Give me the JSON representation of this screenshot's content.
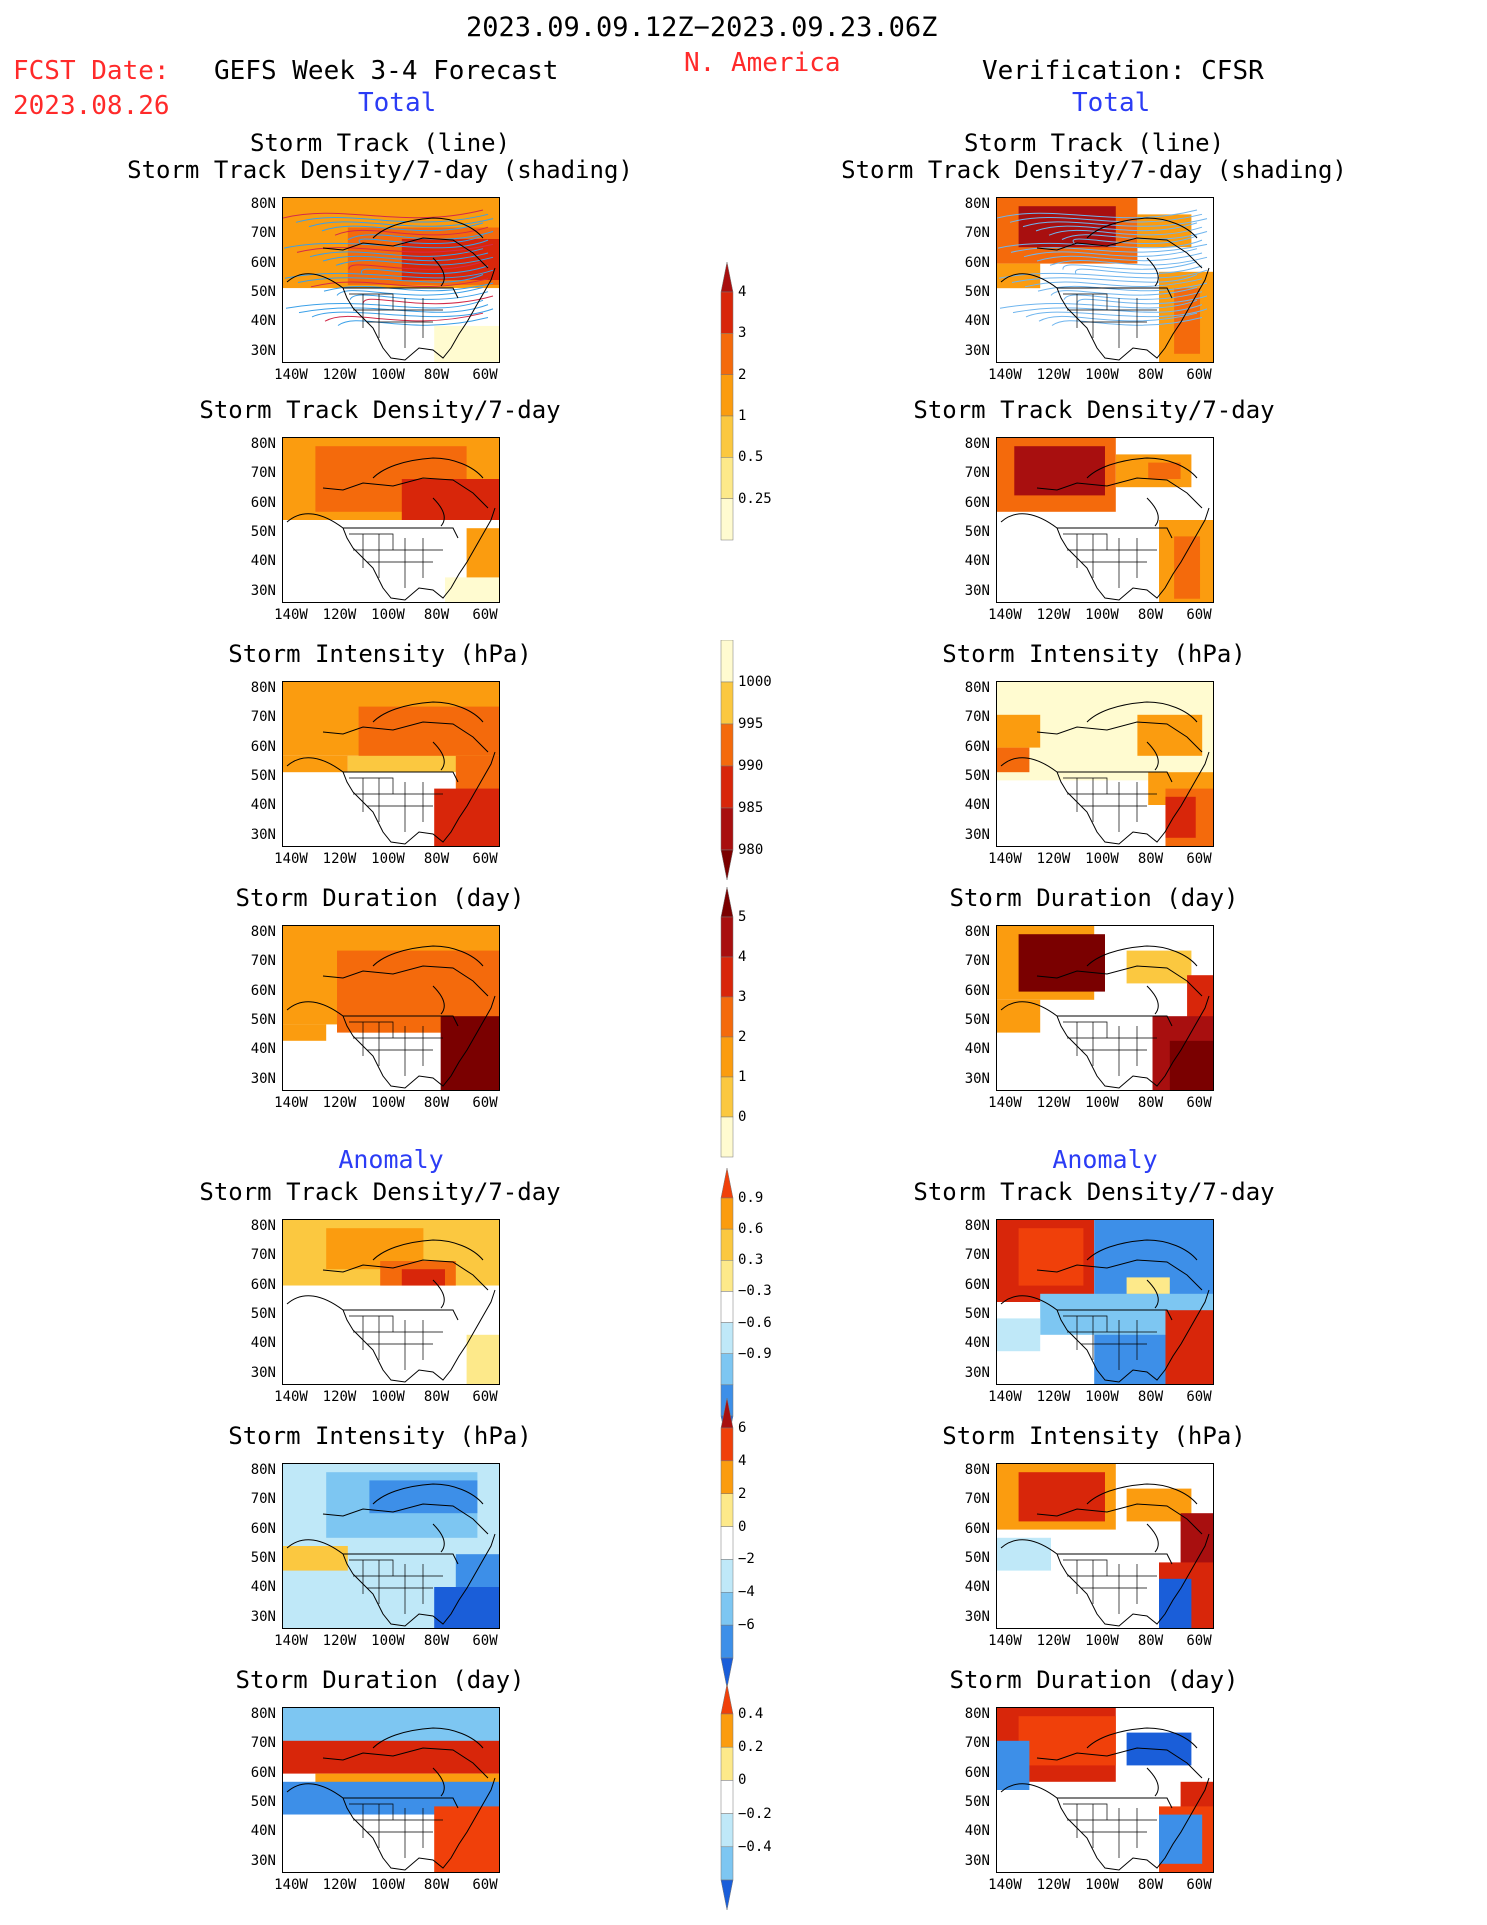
{
  "header": {
    "date_range": "2023.09.09.12Z−2023.09.23.06Z",
    "fcst_label": "FCST Date:",
    "fcst_date": "2023.08.26",
    "model_title": "GEFS Week 3-4 Forecast",
    "region": "N. America",
    "verification": "Verification: CFSR",
    "total_left": "Total",
    "total_right": "Total"
  },
  "sections": {
    "anomaly_left": "Anomaly",
    "anomaly_right": "Anomaly"
  },
  "axes": {
    "lat_labels": [
      "80N",
      "70N",
      "60N",
      "50N",
      "40N",
      "30N"
    ],
    "lon_labels": [
      "140W",
      "120W",
      "100W",
      "80W",
      "60W"
    ]
  },
  "panels": {
    "track_line_title_1": "Storm Track (line)",
    "track_line_title_2": "Storm Track Density/7-day (shading)",
    "density_title": "Storm Track Density/7-day",
    "intensity_title": "Storm Intensity (hPa)",
    "duration_title": "Storm Duration (day)"
  },
  "colorbars": [
    {
      "name": "density-total",
      "labels": [
        "4",
        "3",
        "2",
        "1",
        "0.5",
        "0.25"
      ],
      "colors": [
        "#a80f0f",
        "#d8260a",
        "#f46a0c",
        "#fb9c0f",
        "#fbc840",
        "#fde98a",
        "#fffbd0"
      ]
    },
    {
      "name": "intensity-total",
      "labels": [
        "1000",
        "995",
        "990",
        "985",
        "980"
      ],
      "colors": [
        "#fffbd0",
        "#fbc840",
        "#f46a0c",
        "#d8260a",
        "#a80f0f",
        "#7a0000"
      ]
    },
    {
      "name": "duration-total",
      "labels": [
        "5",
        "4",
        "3",
        "2",
        "1",
        "0"
      ],
      "colors": [
        "#7a0000",
        "#a80f0f",
        "#d8260a",
        "#f46a0c",
        "#fb9c0f",
        "#fbc840",
        "#fffbd0"
      ]
    },
    {
      "name": "density-anom",
      "labels": [
        "0.9",
        "0.6",
        "0.3",
        "−0.3",
        "−0.6",
        "−0.9"
      ],
      "colors": [
        "#f0400a",
        "#fb9c0f",
        "#fbc840",
        "#fde98a",
        "#ffffff",
        "#bfe8f8",
        "#7dc6f2",
        "#3d8fe8",
        "#1a5ed9"
      ]
    },
    {
      "name": "intensity-anom",
      "labels": [
        "6",
        "4",
        "2",
        "0",
        "−2",
        "−4",
        "−6"
      ],
      "colors": [
        "#a80f0f",
        "#f0400a",
        "#fb9c0f",
        "#fde98a",
        "#ffffff",
        "#bfe8f8",
        "#7dc6f2",
        "#3d8fe8",
        "#1a5ed9"
      ]
    },
    {
      "name": "duration-anom",
      "labels": [
        "0.4",
        "0.2",
        "0",
        "−0.2",
        "−0.4"
      ],
      "colors": [
        "#f0400a",
        "#fb9c0f",
        "#fde98a",
        "#ffffff",
        "#bfe8f8",
        "#7dc6f2",
        "#1a5ed9"
      ]
    }
  ]
}
